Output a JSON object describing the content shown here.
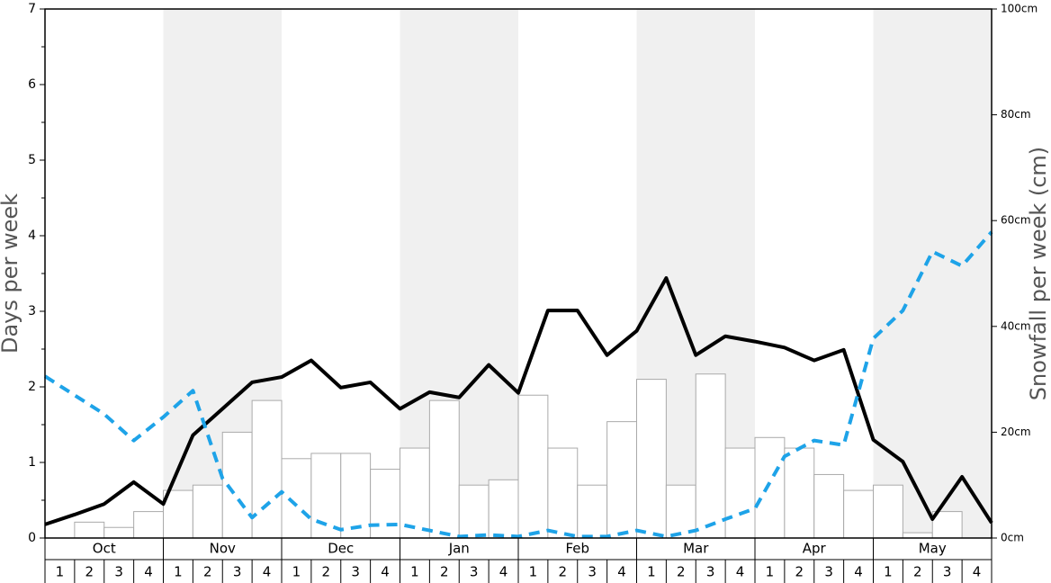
{
  "chart_data": {
    "type": "bar-line",
    "ylabel": "Days per week",
    "y2label": "Snowfall per week (cm)",
    "months": [
      "Oct",
      "Nov",
      "Dec",
      "Jan",
      "Feb",
      "Mar",
      "Apr",
      "May"
    ],
    "categories": [
      "1",
      "2",
      "3",
      "4",
      "1",
      "2",
      "3",
      "4",
      "1",
      "2",
      "3",
      "4",
      "1",
      "2",
      "3",
      "4",
      "1",
      "2",
      "3",
      "4",
      "1",
      "2",
      "3",
      "4",
      "1",
      "2",
      "3",
      "4",
      "1",
      "2",
      "3",
      "4"
    ],
    "ylim": [
      0,
      7
    ],
    "yticks": [
      0,
      1,
      2,
      3,
      4,
      5,
      6,
      7
    ],
    "y2lim": [
      0,
      100
    ],
    "y2ticks": [
      {
        "value": 0,
        "label": "0cm"
      },
      {
        "value": 20,
        "label": "20cm"
      },
      {
        "value": 40,
        "label": "40cm"
      },
      {
        "value": 60,
        "label": "60cm"
      },
      {
        "value": 80,
        "label": "80cm"
      },
      {
        "value": 100,
        "label": "100cm"
      }
    ],
    "xlim": [
      0,
      32
    ],
    "bars": {
      "axis": "y2",
      "color": "#ffffff",
      "values": [
        0,
        3,
        2,
        5,
        9,
        10,
        20,
        26,
        15,
        16,
        16,
        13,
        17,
        26,
        10,
        11,
        27,
        17,
        10,
        22,
        30,
        10,
        31,
        17,
        19,
        17,
        12,
        9,
        10,
        1,
        5,
        0
      ]
    },
    "series": [
      {
        "color": "#000000",
        "dashed": false,
        "x": [
          0,
          1,
          2,
          3,
          4,
          5,
          6,
          7,
          8,
          9,
          10,
          11,
          12,
          13,
          14,
          15,
          16,
          17,
          18,
          19,
          20,
          21,
          22,
          23,
          24,
          25,
          26,
          27,
          28,
          29,
          30,
          31,
          32
        ],
        "values": [
          0.18,
          0.31,
          0.45,
          0.74,
          0.45,
          1.36,
          1.71,
          2.06,
          2.13,
          2.35,
          1.99,
          2.06,
          1.71,
          1.93,
          1.86,
          2.29,
          1.92,
          3.01,
          3.01,
          2.42,
          2.74,
          3.44,
          2.42,
          2.67,
          2.6,
          2.52,
          2.35,
          2.49,
          1.3,
          1.01,
          0.25,
          0.81,
          0.2
        ]
      },
      {
        "color": "#1ea3e8",
        "dashed": true,
        "x": [
          0,
          1,
          2,
          3,
          4,
          5,
          6,
          7,
          8,
          9,
          10,
          11,
          12,
          13,
          14,
          15,
          16,
          17,
          18,
          19,
          20,
          21,
          22,
          23,
          24,
          25,
          26,
          27,
          28,
          29,
          30,
          31,
          32
        ],
        "values": [
          2.14,
          1.89,
          1.64,
          1.29,
          1.6,
          1.95,
          0.79,
          0.27,
          0.61,
          0.25,
          0.11,
          0.17,
          0.18,
          0.1,
          0.02,
          0.04,
          0.02,
          0.1,
          0.02,
          0.02,
          0.1,
          0.02,
          0.1,
          0.25,
          0.39,
          1.08,
          1.29,
          1.23,
          2.64,
          3.01,
          3.79,
          3.6,
          4.05
        ]
      }
    ]
  }
}
